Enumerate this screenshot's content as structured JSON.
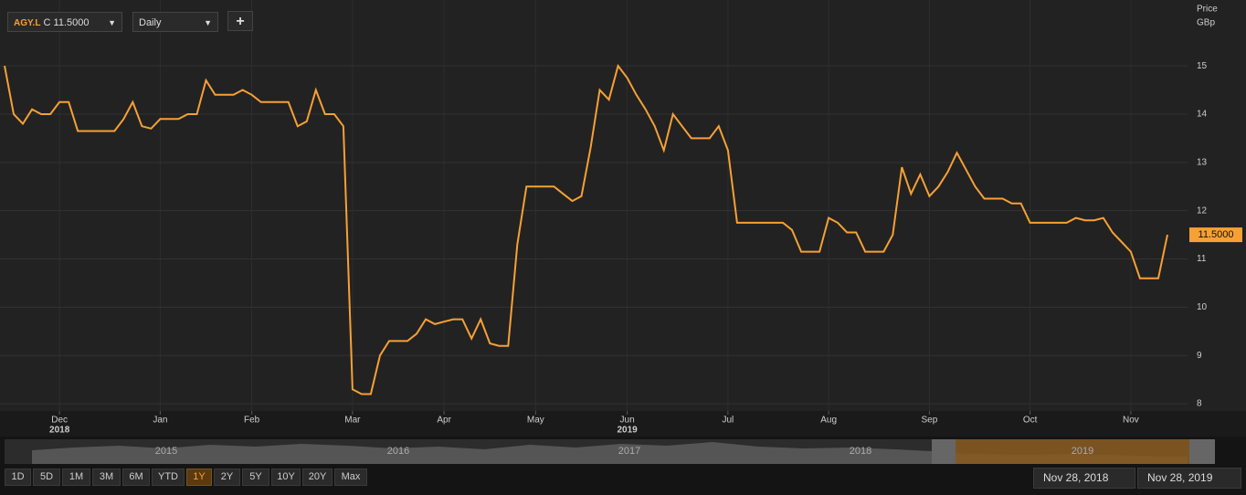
{
  "toolbar": {
    "symbol": "AGY.L",
    "quote": "C 11.5000",
    "interval": "Daily"
  },
  "chart_data": {
    "type": "line",
    "y_axis_title": "Price",
    "y_axis_unit": "GBp",
    "categories": [
      null,
      null,
      null,
      null,
      null,
      null,
      "Dec",
      null,
      null,
      null,
      null,
      null,
      null,
      null,
      null,
      null,
      null,
      "Jan",
      null,
      null,
      null,
      null,
      null,
      null,
      null,
      null,
      null,
      "Feb",
      null,
      null,
      null,
      null,
      null,
      null,
      null,
      null,
      null,
      null,
      "Mar",
      null,
      null,
      null,
      null,
      null,
      null,
      null,
      null,
      null,
      "Apr",
      null,
      null,
      null,
      null,
      null,
      null,
      null,
      null,
      null,
      "May",
      null,
      null,
      null,
      null,
      null,
      null,
      null,
      null,
      null,
      "Jun",
      null,
      null,
      null,
      null,
      null,
      null,
      null,
      null,
      null,
      null,
      "Jul",
      null,
      null,
      null,
      null,
      null,
      null,
      null,
      null,
      null,
      null,
      "Aug",
      null,
      null,
      null,
      null,
      null,
      null,
      null,
      null,
      null,
      null,
      "Sep",
      null,
      null,
      null,
      null,
      null,
      null,
      null,
      null,
      null,
      null,
      "Oct",
      null,
      null,
      null,
      null,
      null,
      null,
      null,
      null,
      null,
      null,
      "Nov",
      null,
      null,
      null,
      null
    ],
    "category_years": [
      null,
      null,
      null,
      null,
      null,
      null,
      "2018",
      null,
      null,
      null,
      null,
      null,
      null,
      null,
      null,
      null,
      null,
      null,
      null,
      null,
      null,
      null,
      null,
      null,
      null,
      null,
      null,
      null,
      null,
      null,
      null,
      null,
      null,
      null,
      null,
      null,
      null,
      null,
      null,
      null,
      null,
      null,
      null,
      null,
      null,
      null,
      null,
      null,
      null,
      null,
      null,
      null,
      null,
      null,
      null,
      null,
      null,
      null,
      null,
      null,
      null,
      null,
      null,
      null,
      null,
      null,
      null,
      null,
      "2019",
      null,
      null,
      null,
      null,
      null,
      null,
      null,
      null,
      null,
      null,
      null,
      null,
      null,
      null,
      null,
      null,
      null,
      null,
      null,
      null,
      null,
      null,
      null,
      null,
      null,
      null,
      null,
      null,
      null,
      null,
      null,
      null,
      null,
      null,
      null,
      null,
      null,
      null,
      null,
      null,
      null,
      null,
      null,
      null,
      null,
      null,
      null,
      null,
      null,
      null,
      null,
      null,
      null,
      null,
      null,
      null,
      null,
      null,
      null,
      null,
      null,
      null,
      null
    ],
    "series": [
      {
        "color": "#f7a035",
        "values": [
          15.0,
          14.0,
          13.8,
          14.1,
          14.0,
          14.0,
          14.25,
          14.25,
          13.65,
          13.65,
          13.65,
          13.65,
          13.65,
          13.9,
          14.25,
          13.75,
          13.7,
          13.9,
          13.9,
          13.9,
          14.0,
          14.0,
          14.7,
          14.4,
          14.4,
          14.4,
          14.5,
          14.4,
          14.25,
          14.25,
          14.25,
          14.25,
          13.75,
          13.85,
          14.5,
          14.0,
          14.0,
          13.75,
          8.3,
          8.2,
          8.2,
          9.0,
          9.3,
          9.3,
          9.3,
          9.45,
          9.75,
          9.65,
          9.7,
          9.75,
          9.75,
          9.35,
          9.75,
          9.25,
          9.2,
          9.2,
          11.3,
          12.5,
          12.5,
          12.5,
          12.5,
          12.35,
          12.2,
          12.3,
          13.3,
          14.5,
          14.3,
          15.0,
          14.75,
          14.4,
          14.1,
          13.75,
          13.25,
          14.0,
          13.75,
          13.5,
          13.5,
          13.5,
          13.75,
          13.25,
          11.75,
          11.75,
          11.75,
          11.75,
          11.75,
          11.75,
          11.6,
          11.15,
          11.15,
          11.15,
          11.85,
          11.75,
          11.55,
          11.55,
          11.15,
          11.15,
          11.15,
          11.5,
          12.9,
          12.35,
          12.75,
          12.3,
          12.5,
          12.8,
          13.2,
          12.85,
          12.5,
          12.25,
          12.25,
          12.25,
          12.15,
          12.15,
          11.75,
          11.75,
          11.75,
          11.75,
          11.75,
          11.85,
          11.8,
          11.8,
          11.85,
          11.55,
          11.35,
          11.15,
          10.6,
          10.6,
          10.6,
          11.5
        ]
      }
    ],
    "last_label": "11.5000",
    "ylim": [
      7.85,
      16.27
    ],
    "yticks": [
      8,
      9,
      10,
      11,
      12,
      13,
      14,
      15
    ],
    "grid": true
  },
  "navigator": {
    "years": [
      "2015",
      "2016",
      "2017",
      "2018",
      "2019"
    ]
  },
  "range_buttons": [
    "1D",
    "5D",
    "1M",
    "3M",
    "6M",
    "YTD",
    "1Y",
    "2Y",
    "5Y",
    "10Y",
    "20Y",
    "Max"
  ],
  "selected_range": "1Y",
  "date_range": {
    "from": "Nov 28, 2018",
    "to": "Nov 28, 2019"
  }
}
